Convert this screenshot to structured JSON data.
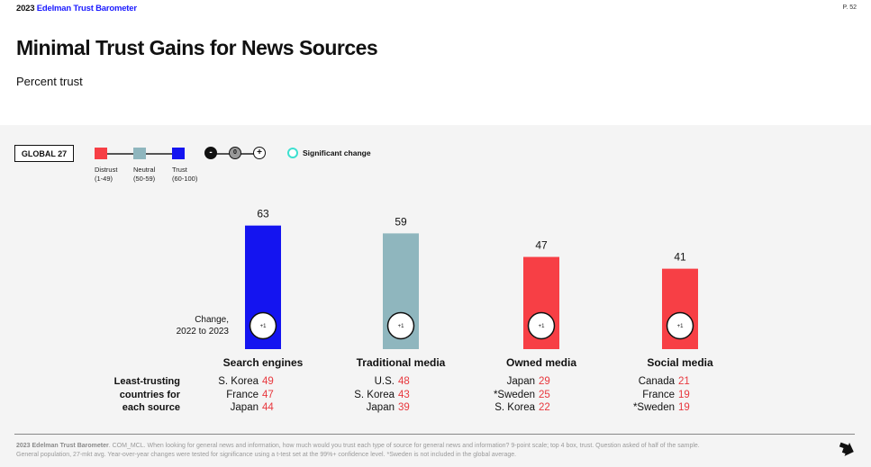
{
  "header": {
    "brand_year": "2023",
    "brand_name": "Edelman Trust Barometer",
    "page_number": "P. 52"
  },
  "title": "Minimal Trust Gains for News Sources",
  "subtitle": "Percent trust",
  "global_label": "GLOBAL 27",
  "legend": {
    "items": [
      {
        "label": "Distrust",
        "range": "(1-49)",
        "color": "#f73f45"
      },
      {
        "label": "Neutral",
        "range": "(50-59)",
        "color": "#8fb6be"
      },
      {
        "label": "Trust",
        "range": "(60-100)",
        "color": "#1414f0"
      }
    ],
    "change_symbols": {
      "minus": "-",
      "zero": "0",
      "plus": "+"
    },
    "significant_change_label": "Significant change"
  },
  "chart_data": {
    "type": "bar",
    "categories": [
      "Search engines",
      "Traditional media",
      "Owned media",
      "Social media"
    ],
    "values": [
      63,
      59,
      47,
      41
    ],
    "changes": [
      "+1",
      "+1",
      "+1",
      "+1"
    ],
    "colors": [
      "#1414f0",
      "#8fb6be",
      "#f73f45",
      "#f73f45"
    ],
    "ylim": [
      0,
      100
    ],
    "title": "",
    "xlabel": "",
    "ylabel": ""
  },
  "change_note": {
    "line1": "Change,",
    "line2": "2022 to 2023"
  },
  "least_trusting": {
    "label_lines": [
      "Least-trusting",
      "countries for",
      "each source"
    ],
    "groups": [
      [
        {
          "country": "S. Korea",
          "value": "49"
        },
        {
          "country": "France",
          "value": "47"
        },
        {
          "country": "Japan",
          "value": "44"
        }
      ],
      [
        {
          "country": "U.S.",
          "value": "48"
        },
        {
          "country": "S. Korea",
          "value": "43"
        },
        {
          "country": "Japan",
          "value": "39"
        }
      ],
      [
        {
          "country": "Japan",
          "value": "29"
        },
        {
          "country": "*Sweden",
          "value": "25"
        },
        {
          "country": "S. Korea",
          "value": "22"
        }
      ],
      [
        {
          "country": "Canada",
          "value": "21"
        },
        {
          "country": "France",
          "value": "19"
        },
        {
          "country": "*Sweden",
          "value": "19"
        }
      ]
    ]
  },
  "footnote": {
    "source_bold": "2023 Edelman Trust Barometer",
    "line1": ". COM_MCL. When looking for general news and information, how much would you trust each type of source for general news and information? 9-point scale; top 4 box, trust. Question asked of half of the sample.",
    "line2": "General population, 27-mkt avg. Year-over-year changes were tested for significance using a t-test set at the 99%+ confidence level. *Sweden is not included in the global average."
  },
  "icons": {
    "next": "arrow-down-right-icon"
  }
}
